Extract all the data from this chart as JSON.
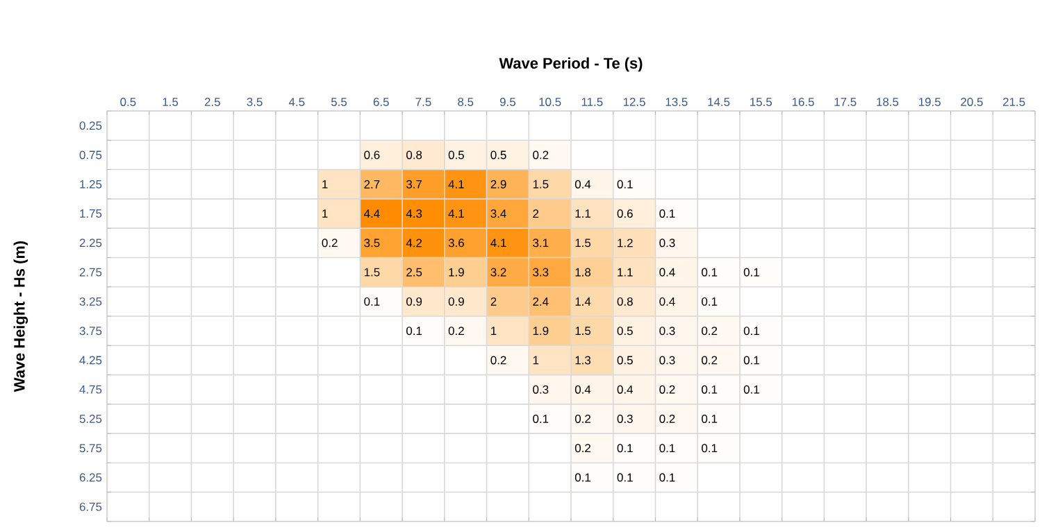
{
  "chart_data": {
    "type": "heatmap",
    "xlabel": "Wave Period - Te (s)",
    "ylabel": "Wave Height - Hs (m)",
    "categories": [
      "0.5",
      "1.5",
      "2.5",
      "3.5",
      "4.5",
      "5.5",
      "6.5",
      "7.5",
      "8.5",
      "9.5",
      "10.5",
      "11.5",
      "12.5",
      "13.5",
      "14.5",
      "15.5",
      "16.5",
      "17.5",
      "18.5",
      "19.5",
      "20.5",
      "21.5"
    ],
    "y_categories": [
      "0.25",
      "0.75",
      "1.25",
      "1.75",
      "2.25",
      "2.75",
      "3.25",
      "3.75",
      "4.25",
      "4.75",
      "5.25",
      "5.75",
      "6.25",
      "6.75"
    ],
    "cells": [
      [
        null,
        null,
        null,
        null,
        null,
        null,
        null,
        null,
        null,
        null,
        null,
        null,
        null,
        null,
        null,
        null,
        null,
        null,
        null,
        null,
        null,
        null
      ],
      [
        null,
        null,
        null,
        null,
        null,
        null,
        0.6,
        0.8,
        0.5,
        0.5,
        0.2,
        null,
        null,
        null,
        null,
        null,
        null,
        null,
        null,
        null,
        null,
        null
      ],
      [
        null,
        null,
        null,
        null,
        null,
        1,
        2.7,
        3.7,
        4.1,
        2.9,
        1.5,
        0.4,
        0.1,
        null,
        null,
        null,
        null,
        null,
        null,
        null,
        null,
        null
      ],
      [
        null,
        null,
        null,
        null,
        null,
        1,
        4.4,
        4.3,
        4.1,
        3.4,
        2,
        1.1,
        0.6,
        0.1,
        null,
        null,
        null,
        null,
        null,
        null,
        null,
        null
      ],
      [
        null,
        null,
        null,
        null,
        null,
        0.2,
        3.5,
        4.2,
        3.6,
        4.1,
        3.1,
        1.5,
        1.2,
        0.3,
        null,
        null,
        null,
        null,
        null,
        null,
        null,
        null
      ],
      [
        null,
        null,
        null,
        null,
        null,
        null,
        1.5,
        2.5,
        1.9,
        3.2,
        3.3,
        1.8,
        1.1,
        0.4,
        0.1,
        0.1,
        null,
        null,
        null,
        null,
        null,
        null
      ],
      [
        null,
        null,
        null,
        null,
        null,
        null,
        0.1,
        0.9,
        0.9,
        2,
        2.4,
        1.4,
        0.8,
        0.4,
        0.1,
        null,
        null,
        null,
        null,
        null,
        null,
        null
      ],
      [
        null,
        null,
        null,
        null,
        null,
        null,
        null,
        0.1,
        0.2,
        1,
        1.9,
        1.5,
        0.5,
        0.3,
        0.2,
        0.1,
        null,
        null,
        null,
        null,
        null,
        null
      ],
      [
        null,
        null,
        null,
        null,
        null,
        null,
        null,
        null,
        null,
        0.2,
        1,
        1.3,
        0.5,
        0.3,
        0.2,
        0.1,
        null,
        null,
        null,
        null,
        null,
        null
      ],
      [
        null,
        null,
        null,
        null,
        null,
        null,
        null,
        null,
        null,
        null,
        0.3,
        0.4,
        0.4,
        0.2,
        0.1,
        0.1,
        null,
        null,
        null,
        null,
        null,
        null
      ],
      [
        null,
        null,
        null,
        null,
        null,
        null,
        null,
        null,
        null,
        null,
        0.1,
        0.2,
        0.3,
        0.2,
        0.1,
        null,
        null,
        null,
        null,
        null,
        null,
        null
      ],
      [
        null,
        null,
        null,
        null,
        null,
        null,
        null,
        null,
        null,
        null,
        null,
        0.2,
        0.1,
        0.1,
        0.1,
        null,
        null,
        null,
        null,
        null,
        null,
        null
      ],
      [
        null,
        null,
        null,
        null,
        null,
        null,
        null,
        null,
        null,
        null,
        null,
        0.1,
        0.1,
        0.1,
        null,
        null,
        null,
        null,
        null,
        null,
        null,
        null
      ],
      [
        null,
        null,
        null,
        null,
        null,
        null,
        null,
        null,
        null,
        null,
        null,
        null,
        null,
        null,
        null,
        null,
        null,
        null,
        null,
        null,
        null,
        null
      ]
    ],
    "data_labels": true,
    "grid": true
  }
}
